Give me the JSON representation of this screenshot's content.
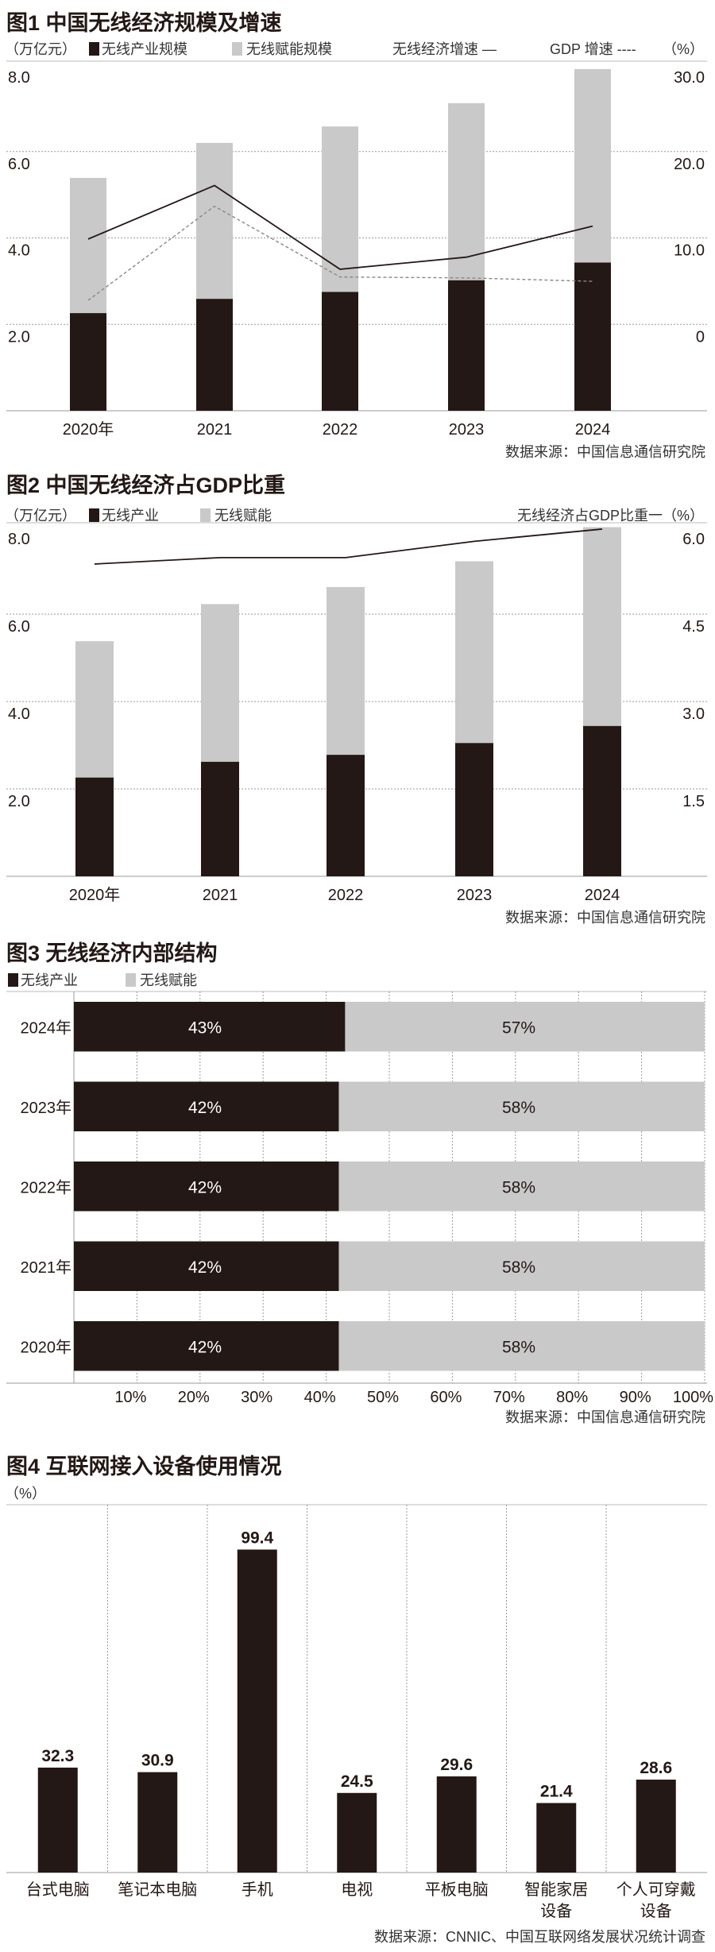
{
  "colors": {
    "industry": "#231815",
    "empower": "#c9c9c9",
    "grid": "#9a9a9a",
    "gdp_line": "#888888"
  },
  "chart_data": [
    {
      "type": "bar",
      "stacked": true,
      "title": "图1 中国无线经济规模及增速",
      "unit_left": "（万亿元）",
      "unit_right": "（%）",
      "legend": [
        "无线产业规模",
        "无线赋能规模",
        "无线经济增速 —",
        "GDP 增速 ----"
      ],
      "categories": [
        "2020年",
        "2021",
        "2022",
        "2023",
        "2024"
      ],
      "series": [
        {
          "name": "无线产业规模",
          "kind": "bar",
          "values": [
            2.26,
            2.59,
            2.75,
            3.02,
            3.43
          ]
        },
        {
          "name": "无线赋能规模",
          "kind": "bar",
          "values": [
            3.13,
            3.61,
            3.83,
            4.1,
            4.48
          ]
        },
        {
          "name": "无线经济增速",
          "kind": "line",
          "axis": "right",
          "values": [
            9.9,
            16.1,
            6.4,
            7.8,
            11.4
          ]
        },
        {
          "name": "GDP 增速",
          "kind": "line-dashed",
          "axis": "right",
          "values": [
            2.8,
            13.7,
            5.5,
            5.4,
            5.0
          ]
        }
      ],
      "yticks_left": [
        "8.0",
        "6.0",
        "4.0",
        "2.0"
      ],
      "yticks_right": [
        "30.0",
        "20.0",
        "10.0",
        "0"
      ],
      "ylim_left": [
        0,
        8
      ],
      "ylim_right": [
        -10,
        30
      ],
      "grid": true,
      "source": "数据来源：中国信息通信研究院"
    },
    {
      "type": "bar",
      "stacked": true,
      "title": "图2 中国无线经济占GDP比重",
      "unit_left": "（万亿元）",
      "legend": [
        "无线产业",
        "无线赋能",
        "无线经济占GDP比重一（%）"
      ],
      "categories": [
        "2020年",
        "2021",
        "2022",
        "2023",
        "2024"
      ],
      "series": [
        {
          "name": "无线产业",
          "kind": "bar",
          "values": [
            2.26,
            2.62,
            2.78,
            3.05,
            3.44
          ]
        },
        {
          "name": "无线赋能",
          "kind": "bar",
          "values": [
            3.12,
            3.61,
            3.84,
            4.16,
            4.55
          ]
        },
        {
          "name": "无线经济占GDP比重",
          "kind": "line",
          "axis": "right",
          "values": [
            5.36,
            5.47,
            5.47,
            5.75,
            5.96
          ]
        }
      ],
      "yticks_left": [
        "8.0",
        "6.0",
        "4.0",
        "2.0"
      ],
      "yticks_right": [
        "6.0",
        "4.5",
        "3.0",
        "1.5"
      ],
      "ylim_left": [
        0,
        8
      ],
      "ylim_right": [
        0,
        6
      ],
      "grid": true,
      "source": "数据来源：中国信息通信研究院"
    },
    {
      "type": "bar",
      "orientation": "horizontal",
      "stacked": true,
      "title": "图3 无线经济内部结构",
      "legend": [
        "无线产业",
        "无线赋能"
      ],
      "categories": [
        "2024年",
        "2023年",
        "2022年",
        "2021年",
        "2020年"
      ],
      "series": [
        {
          "name": "无线产业",
          "values": [
            43,
            42,
            42,
            42,
            42
          ],
          "labels": [
            "43%",
            "42%",
            "42%",
            "42%",
            "42%"
          ]
        },
        {
          "name": "无线赋能",
          "values": [
            57,
            58,
            58,
            58,
            58
          ],
          "labels": [
            "57%",
            "58%",
            "58%",
            "58%",
            "58%"
          ]
        }
      ],
      "xticks": [
        "10%",
        "20%",
        "30%",
        "40%",
        "50%",
        "60%",
        "70%",
        "80%",
        "90%",
        "100%"
      ],
      "xlim": [
        0,
        100
      ],
      "grid": true,
      "source": "数据来源：中国信息通信研究院"
    },
    {
      "type": "bar",
      "title": "图4 互联网接入设备使用情况",
      "unit_left": "（%）",
      "categories": [
        [
          "台式电脑"
        ],
        [
          "笔记本电脑"
        ],
        [
          "手机"
        ],
        [
          "电视"
        ],
        [
          "平板电脑"
        ],
        [
          "智能家居",
          "设备"
        ],
        [
          "个人可穿戴",
          "设备"
        ]
      ],
      "values": [
        32.3,
        30.9,
        99.4,
        24.5,
        29.6,
        21.4,
        28.6
      ],
      "value_labels": [
        "32.3",
        "30.9",
        "99.4",
        "24.5",
        "29.6",
        "21.4",
        "28.6"
      ],
      "ylim": [
        0,
        100
      ],
      "grid": true,
      "source": "数据来源：CNNIC、中国互联网络发展状况统计调查"
    }
  ]
}
